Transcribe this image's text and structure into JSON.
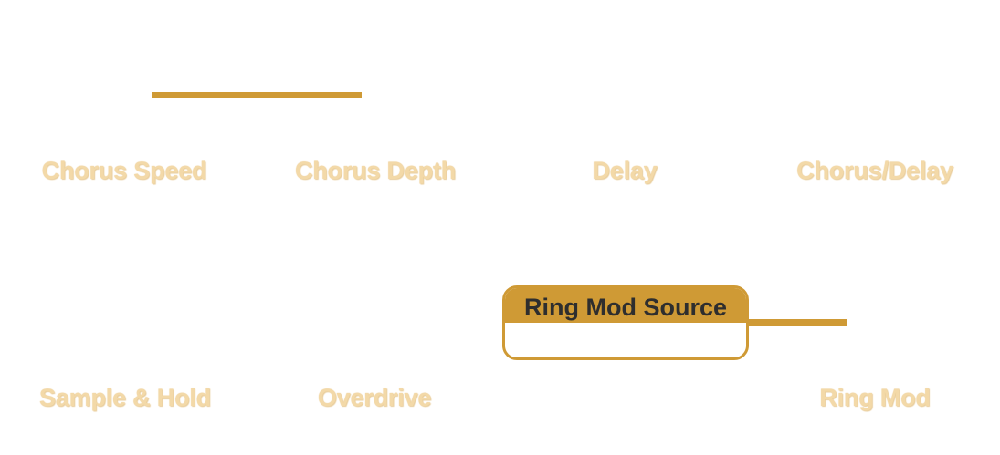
{
  "controls": {
    "chorus_speed": {
      "label": "Chorus Speed",
      "slider_fraction": 1.0
    },
    "chorus_depth": {
      "label": "Chorus Depth"
    },
    "delay": {
      "label": "Delay"
    },
    "chorus_delay": {
      "label": "Chorus/Delay"
    },
    "sample_hold": {
      "label": "Sample & Hold"
    },
    "overdrive": {
      "label": "Overdrive"
    },
    "ring_mod": {
      "label": "Ring Mod"
    }
  },
  "ring_mod_source": {
    "title": "Ring Mod Source",
    "value": ""
  },
  "colors": {
    "accent": "#cf9a35",
    "label": "#f3d9a8",
    "header_text": "#2e2e2e",
    "background": "#ffffff"
  }
}
